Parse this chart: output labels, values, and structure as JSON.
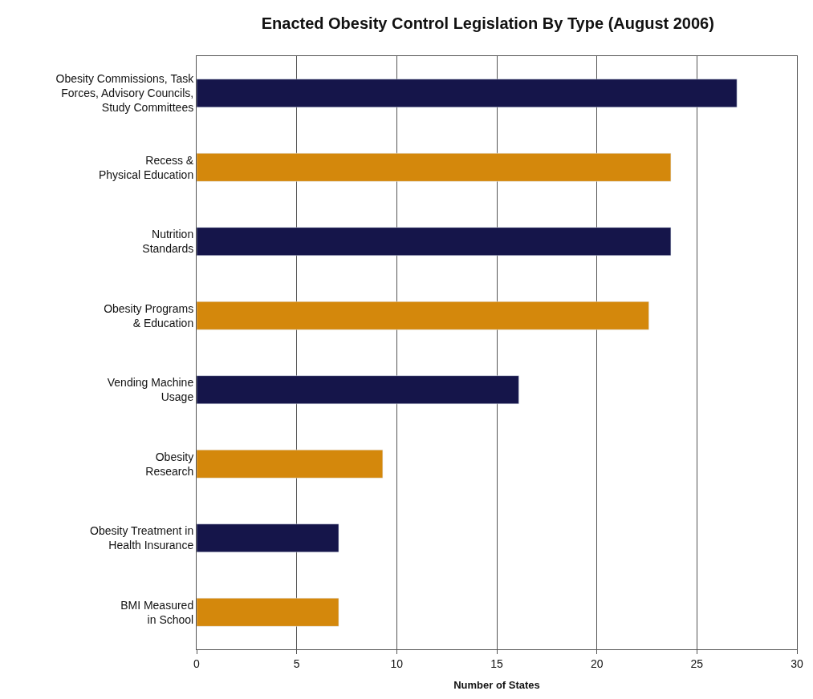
{
  "chart_data": {
    "type": "bar",
    "orientation": "horizontal",
    "title": "Enacted Obesity Control Legislation By Type (August 2006)",
    "xlabel": "Number of States",
    "categories": [
      "Obesity Commissions, Task\nForces, Advisory Councils,\nStudy Committees",
      "Recess &\nPhysical Education",
      "Nutrition\nStandards",
      "Obesity Programs\n& Education",
      "Vending Machine\nUsage",
      "Obesity\nResearch",
      "Obesity Treatment in\nHealth Insurance",
      "BMI Measured\nin School"
    ],
    "values": [
      27,
      23.7,
      23.7,
      22.6,
      16.1,
      9.3,
      7.1,
      7.1
    ],
    "colors": [
      "#15154a",
      "#d4880c",
      "#15154a",
      "#d4880c",
      "#15154a",
      "#d4880c",
      "#15154a",
      "#d4880c"
    ],
    "xlim": [
      0,
      30
    ],
    "xticks": [
      0,
      5,
      10,
      15,
      20,
      25,
      30
    ],
    "grid": "x"
  }
}
